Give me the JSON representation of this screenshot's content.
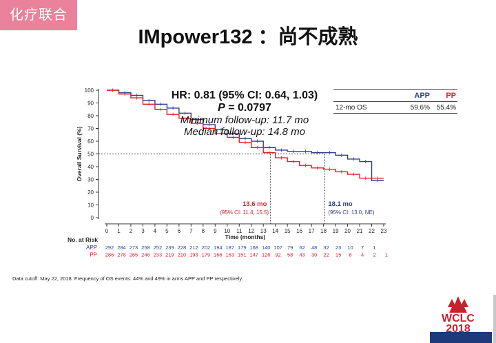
{
  "tag": "化疗联合",
  "slide_title": "IMpower132 ：尚不成熟",
  "stats": {
    "hr": "HR: 0.81 (95% CI: 0.64, 1.03)",
    "p_label": "P",
    "p_value": " = 0.0797",
    "min_followup": "Minimum follow-up: 11.7 mo",
    "median_followup": "Median follow-up: 14.8 mo"
  },
  "os_table": {
    "col_app": "APP",
    "col_pp": "PP",
    "row_label": "12-mo OS",
    "app_value": "59.6%",
    "pp_value": "55.4%"
  },
  "footnote": "Data cutoff: May 22, 2018. Frequency of OS events: 44% and 49% in arms APP and PP respectively.",
  "logo": {
    "line1": "WCLC",
    "line2": "2018"
  },
  "colors": {
    "app": "#2e3f8f",
    "pp": "#e01f26",
    "tag": "#e9829a"
  },
  "chart_data": {
    "type": "line",
    "ylabel": "Overall Survival (%)",
    "xlabel": "Time (months)",
    "ylim": [
      0,
      100
    ],
    "xlim": [
      0,
      23
    ],
    "yticks": [
      0,
      10,
      20,
      30,
      40,
      50,
      60,
      70,
      80,
      90,
      100
    ],
    "xticks": [
      0,
      1,
      2,
      3,
      4,
      5,
      6,
      7,
      8,
      9,
      10,
      11,
      12,
      13,
      14,
      15,
      16,
      17,
      18,
      19,
      20,
      21,
      22,
      23
    ],
    "series": [
      {
        "name": "APP",
        "color": "#2e3f8f",
        "x": [
          0,
          1,
          2,
          3,
          4,
          5,
          6,
          7,
          8,
          9,
          10,
          11,
          12,
          13,
          14,
          15,
          16,
          17,
          18,
          19,
          20,
          21,
          22,
          23
        ],
        "y": [
          100,
          98,
          96,
          92,
          89,
          86,
          82,
          77,
          73,
          69,
          66,
          62,
          60,
          55,
          53,
          52,
          52,
          51,
          51,
          49,
          46,
          44,
          29,
          29
        ]
      },
      {
        "name": "PP",
        "color": "#e01f26",
        "x": [
          0,
          1,
          2,
          3,
          4,
          5,
          6,
          7,
          8,
          9,
          10,
          11,
          12,
          13,
          14,
          15,
          16,
          17,
          18,
          19,
          20,
          21,
          22,
          23
        ],
        "y": [
          100,
          97,
          94,
          89,
          85,
          81,
          78,
          74,
          70,
          66,
          63,
          59,
          55,
          51,
          47,
          44,
          41,
          39,
          38,
          36,
          34,
          31,
          31,
          31
        ]
      }
    ],
    "medians": [
      {
        "x": 13.6,
        "label": "13.6 mo",
        "ci": "(95% CI: 11.4, 15.5)",
        "color": "#e01f26"
      },
      {
        "x": 18.1,
        "label": "18.1 mo",
        "ci": "(95% CI: 13.0, NE)",
        "color": "#2e3f8f"
      }
    ],
    "risk_table": {
      "title": "No. at Risk",
      "rows": [
        {
          "name": "APP",
          "color": "#2e3f8f",
          "values": [
            292,
            284,
            273,
            258,
            252,
            239,
            228,
            212,
            202,
            194,
            187,
            179,
            168,
            140,
            107,
            79,
            62,
            48,
            32,
            23,
            10,
            7,
            1,
            ""
          ]
        },
        {
          "name": "PP",
          "color": "#e01f26",
          "values": [
            286,
            278,
            265,
            246,
            233,
            219,
            210,
            193,
            179,
            166,
            163,
            151,
            147,
            126,
            92,
            58,
            43,
            30,
            22,
            15,
            8,
            4,
            2,
            1
          ]
        }
      ]
    }
  }
}
